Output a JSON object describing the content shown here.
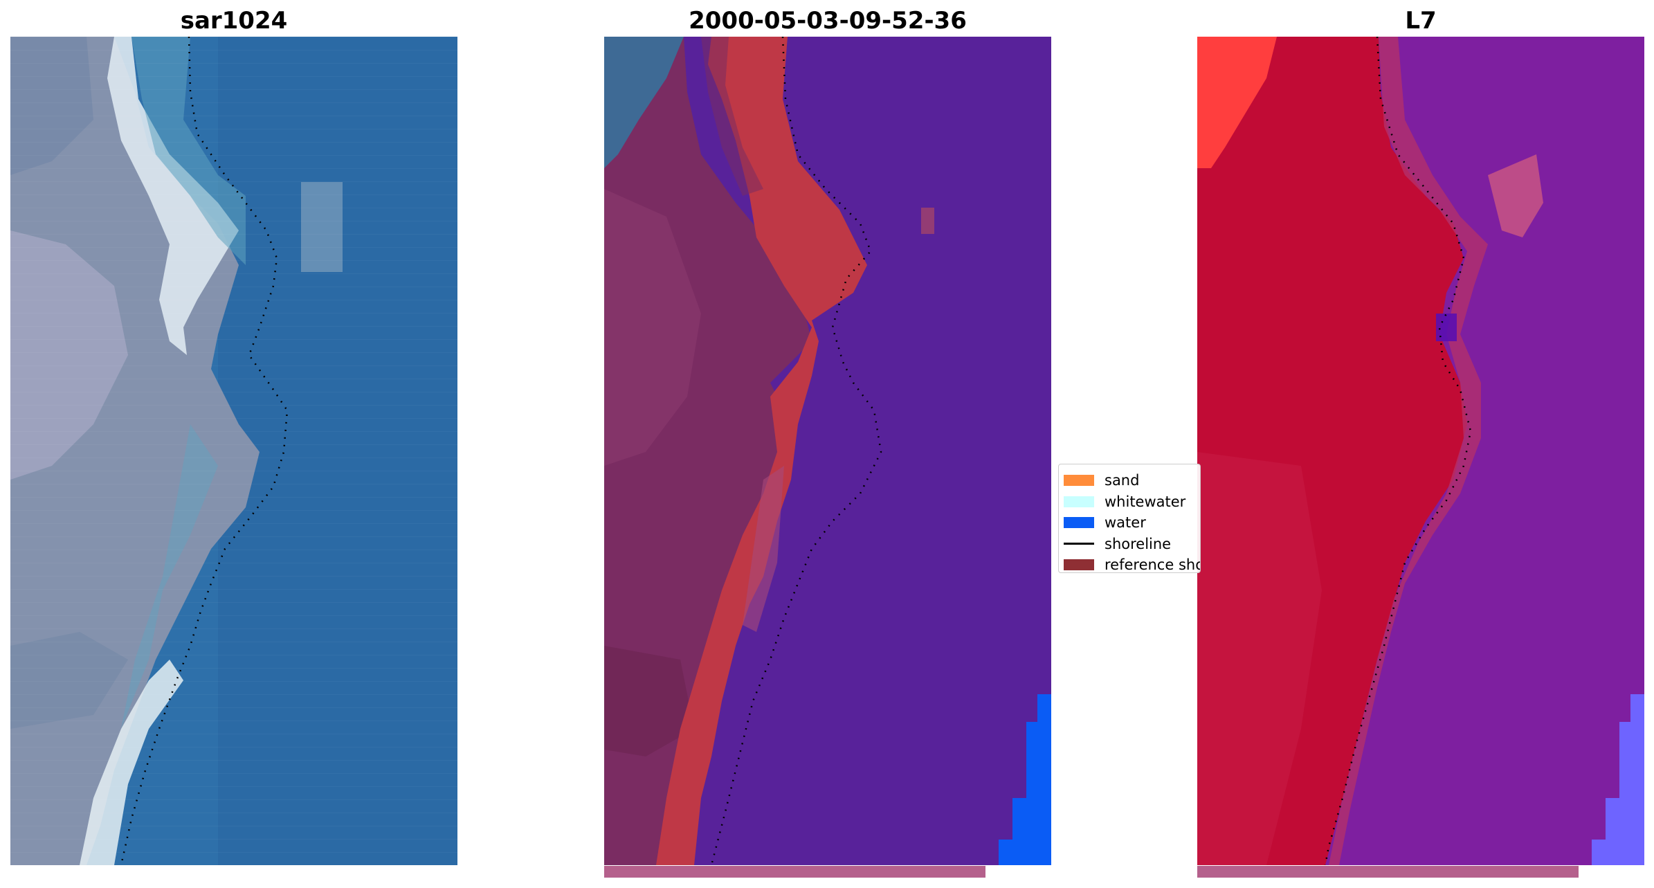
{
  "panels": [
    {
      "title": "sar1024"
    },
    {
      "title": "2000-05-03-09-52-36"
    },
    {
      "title": "L7"
    }
  ],
  "legend": {
    "items": [
      {
        "label": "sand",
        "color": "#ff8c3a",
        "kind": "patch"
      },
      {
        "label": "whitewater",
        "color": "#c8ffff",
        "kind": "patch"
      },
      {
        "label": "water",
        "color": "#0a5cf5",
        "kind": "patch"
      },
      {
        "label": "shoreline",
        "color": "#000000",
        "kind": "line"
      },
      {
        "label": "reference shoreline",
        "color": "#8f2f34",
        "kind": "patch"
      }
    ]
  },
  "colors": {
    "rgb_water": "#2a6aa5",
    "rgb_land": "#8896b0",
    "rgb_surf": "#e8f0f2",
    "class_land": "#7a2c62",
    "class_sand": "#bf3846",
    "class_water": "#58229a",
    "class_water_bright": "#0a5cf5",
    "ndwi_land": "#c10b35",
    "ndwi_water": "#7e1fa0",
    "ndwi_bright_water": "#6e64ff",
    "under_bar": "#b5608c"
  }
}
